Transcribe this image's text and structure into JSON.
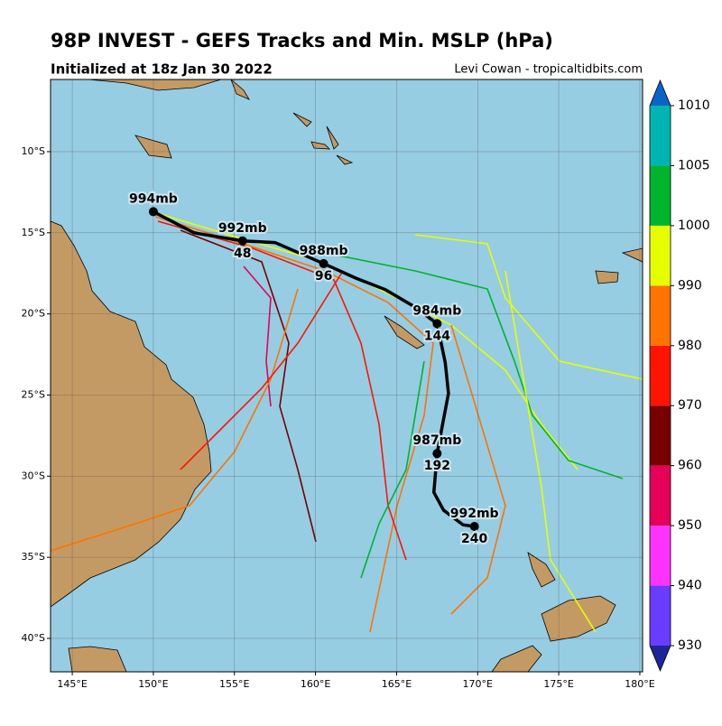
{
  "chart_data": {
    "type": "track",
    "title": "98P INVEST - GEFS Tracks and Min. MSLP (hPa)",
    "subtitle": "Initialized at 18z Jan 30 2022",
    "credit": "Levi Cowan - tropicaltidbits.com",
    "xlim": [
      143.66,
      180.17
    ],
    "ylim": [
      -42.06,
      -5.55
    ],
    "xticks": [
      {
        "value": 145,
        "label": "145°E"
      },
      {
        "value": 150,
        "label": "150°E"
      },
      {
        "value": 155,
        "label": "155°E"
      },
      {
        "value": 160,
        "label": "160°E"
      },
      {
        "value": 165,
        "label": "165°E"
      },
      {
        "value": 170,
        "label": "170°E"
      },
      {
        "value": 175,
        "label": "175°E"
      },
      {
        "value": 180,
        "label": "180°E"
      }
    ],
    "yticks": [
      {
        "value": -10,
        "label": "10°S"
      },
      {
        "value": -15,
        "label": "15°S"
      },
      {
        "value": -20,
        "label": "20°S"
      },
      {
        "value": -25,
        "label": "25°S"
      },
      {
        "value": -30,
        "label": "30°S"
      },
      {
        "value": -35,
        "label": "35°S"
      },
      {
        "value": -40,
        "label": "40°S"
      }
    ],
    "grid": true,
    "mean_track": {
      "color": "#000000",
      "x": [
        150.0,
        152.5,
        155.5,
        157.5,
        160.5,
        162.5,
        164.3,
        166.0,
        167.5,
        168.0,
        168.2,
        167.8,
        167.5,
        167.3,
        167.9,
        169.1,
        169.8
      ],
      "y": [
        -13.7,
        -15.0,
        -15.5,
        -15.6,
        -16.9,
        -17.8,
        -18.5,
        -19.5,
        -20.6,
        -23.0,
        -24.9,
        -27.0,
        -28.6,
        -31.0,
        -32.1,
        -33.0,
        -33.1
      ]
    },
    "track_labels": [
      {
        "x": 150.0,
        "y": -13.7,
        "pressure": "994mb"
      },
      {
        "x": 155.5,
        "y": -15.5,
        "pressure": "992mb",
        "hour": "48"
      },
      {
        "x": 160.5,
        "y": -16.9,
        "pressure": "988mb",
        "hour": "96"
      },
      {
        "x": 167.5,
        "y": -20.6,
        "pressure": "984mb",
        "hour": "144"
      },
      {
        "x": 167.5,
        "y": -28.6,
        "pressure": "987mb",
        "hour": "192"
      },
      {
        "x": 169.8,
        "y": -33.1,
        "pressure": "992mb",
        "hour": "240"
      }
    ],
    "colorbar": {
      "levels": [
        930,
        940,
        950,
        960,
        970,
        980,
        990,
        1000,
        1005,
        1010
      ],
      "colors": [
        "#6a3cff",
        "#ff33ff",
        "#e6005a",
        "#780000",
        "#ff1400",
        "#ff7300",
        "#e6ff00",
        "#00b42d",
        "#00b4b4"
      ],
      "under_color": "#1c2696",
      "over_color": "#0a64c8"
    }
  }
}
